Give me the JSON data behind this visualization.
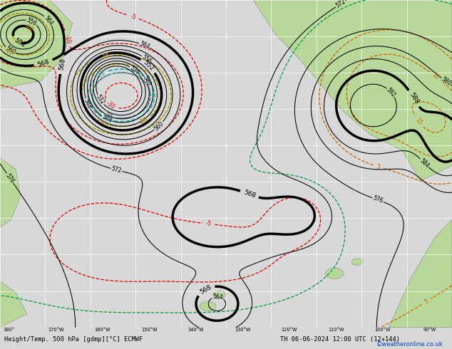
{
  "title": "Height/Temp. 500 hPa [gdmp][°C] ECMWF",
  "date_str": "TH 06-06-2024 12:00 UTC (12+144)",
  "credit": "©weatheronline.co.uk",
  "land_color": "#b8d899",
  "ocean_color": "#c0c0c0",
  "grid_color": "#ffffff",
  "height_color": "#000000",
  "temp_neg_color": "#dd0000",
  "temp_pos_color": "#cc6600",
  "temp_zero_color": "#009944",
  "temp_cyan_color": "#00aaaa",
  "temp_yg_color": "#99cc00",
  "bottom_color": "#e0e0e0",
  "credit_color": "#0044cc",
  "lon_labels": [
    "180°",
    "170°W",
    "160°W",
    "150°W",
    "140°W",
    "130°W",
    "120°W",
    "110°W",
    "100°W",
    "90°W"
  ],
  "figsize": [
    6.34,
    4.9
  ],
  "dpi": 100
}
